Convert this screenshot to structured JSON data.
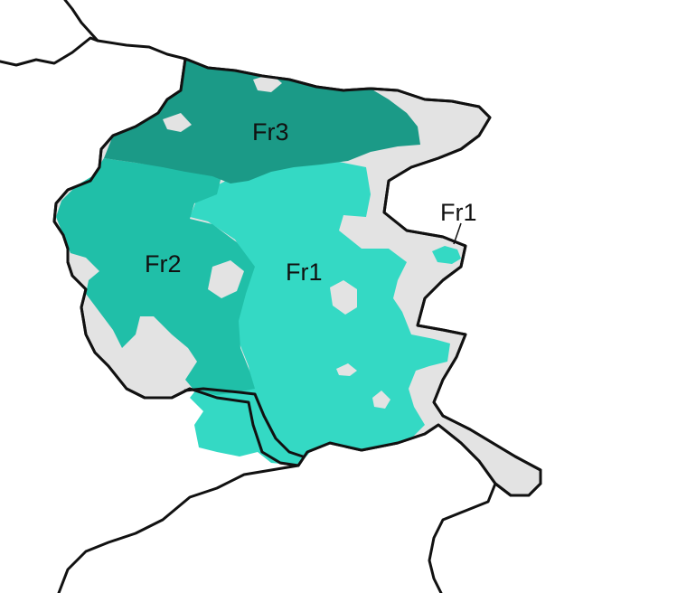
{
  "regions": [
    {
      "id": "fr3",
      "label": "Fr3",
      "color": "#1b9a87"
    },
    {
      "id": "fr2",
      "label": "Fr2",
      "color": "#20bfa8"
    },
    {
      "id": "fr1",
      "label": "Fr1",
      "color": "#34d9c4"
    }
  ],
  "callout_label": "Fr1",
  "colors": {
    "background": "#ffffff",
    "no_data": "#e3e3e3",
    "border": "#111111"
  }
}
